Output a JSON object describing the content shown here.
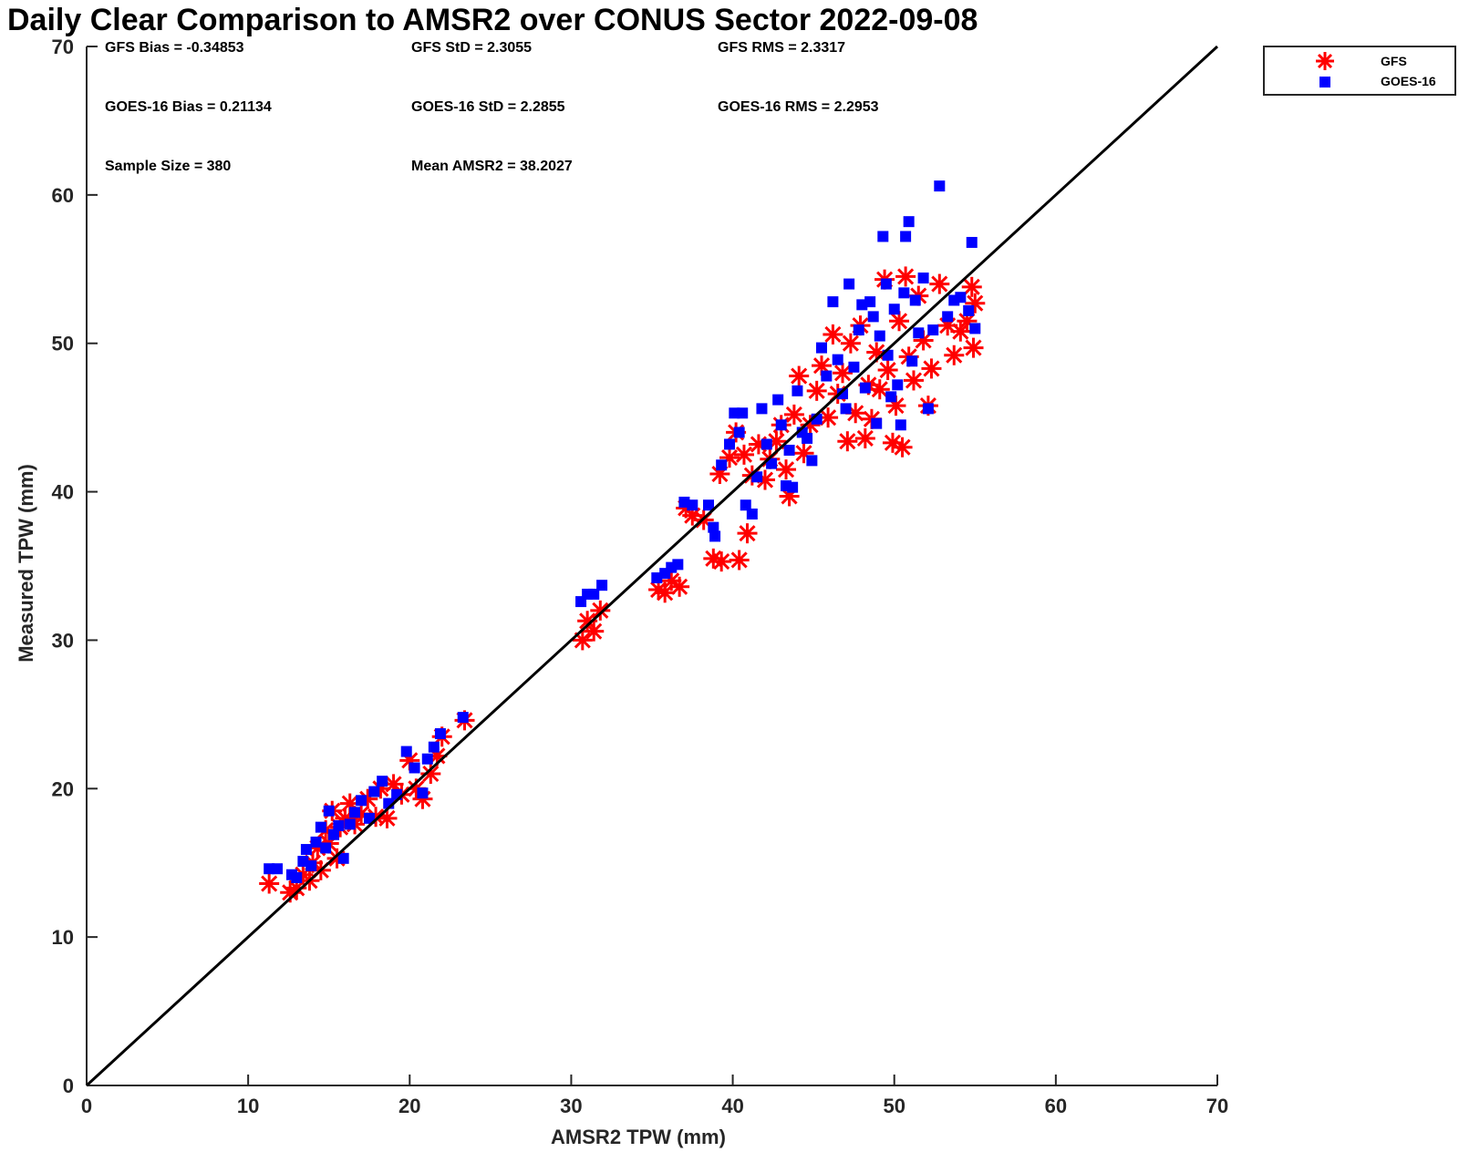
{
  "chart_data": {
    "type": "scatter",
    "title": "Daily Clear Comparison to AMSR2 over CONUS Sector 2022-09-08",
    "xlabel": "AMSR2 TPW (mm)",
    "ylabel": "Measured TPW (mm)",
    "xlim": [
      0,
      70
    ],
    "ylim": [
      0,
      70
    ],
    "xticks": [
      "0",
      "10",
      "20",
      "30",
      "40",
      "50",
      "60",
      "70"
    ],
    "yticks": [
      "0",
      "10",
      "20",
      "30",
      "40",
      "50",
      "60",
      "70"
    ],
    "grid": false,
    "legend_position": "outside top-right",
    "reference_line": "1:1",
    "stats": {
      "gfs_bias": "GFS Bias = -0.34853",
      "gfs_std": "GFS StD = 2.3055",
      "gfs_rms": "GFS RMS = 2.3317",
      "goes_bias": "GOES-16 Bias = 0.21134",
      "goes_std": "GOES-16 StD = 2.2855",
      "goes_rms": "GOES-16 RMS = 2.2953",
      "sample_size": "Sample Size = 380",
      "mean_amsr2": "Mean AMSR2 = 38.2027"
    },
    "series": [
      {
        "name": "GFS",
        "marker": "asterisk",
        "color": "#ff0000",
        "points": [
          [
            11.3,
            13.6
          ],
          [
            12.6,
            13.0
          ],
          [
            13.0,
            13.3
          ],
          [
            13.4,
            14.2
          ],
          [
            13.8,
            13.8
          ],
          [
            14.0,
            15.0
          ],
          [
            14.3,
            16.0
          ],
          [
            14.5,
            14.5
          ],
          [
            14.8,
            17.2
          ],
          [
            15.0,
            16.3
          ],
          [
            15.2,
            18.5
          ],
          [
            15.5,
            15.3
          ],
          [
            15.7,
            17.4
          ],
          [
            16.0,
            18.0
          ],
          [
            16.3,
            19.0
          ],
          [
            16.6,
            17.6
          ],
          [
            17.0,
            18.3
          ],
          [
            17.4,
            19.3
          ],
          [
            17.9,
            18.1
          ],
          [
            18.2,
            20.0
          ],
          [
            18.6,
            18.0
          ],
          [
            19.0,
            20.3
          ],
          [
            19.5,
            19.6
          ],
          [
            20.0,
            21.9
          ],
          [
            20.4,
            20.0
          ],
          [
            20.8,
            19.3
          ],
          [
            21.3,
            21.0
          ],
          [
            21.7,
            22.2
          ],
          [
            22.0,
            23.5
          ],
          [
            23.4,
            24.6
          ],
          [
            30.7,
            30.0
          ],
          [
            31.0,
            31.3
          ],
          [
            31.4,
            30.6
          ],
          [
            31.8,
            32.0
          ],
          [
            35.4,
            33.4
          ],
          [
            35.8,
            33.2
          ],
          [
            36.2,
            34.0
          ],
          [
            36.7,
            33.6
          ],
          [
            37.1,
            38.9
          ],
          [
            37.5,
            38.4
          ],
          [
            38.2,
            38.1
          ],
          [
            38.8,
            35.5
          ],
          [
            39.3,
            35.3
          ],
          [
            39.2,
            41.2
          ],
          [
            39.8,
            42.3
          ],
          [
            40.2,
            44.0
          ],
          [
            40.4,
            35.4
          ],
          [
            40.7,
            42.5
          ],
          [
            40.9,
            37.2
          ],
          [
            41.2,
            41.1
          ],
          [
            41.6,
            43.2
          ],
          [
            42.0,
            40.8
          ],
          [
            42.3,
            42.2
          ],
          [
            42.7,
            43.4
          ],
          [
            43.0,
            44.5
          ],
          [
            43.3,
            41.5
          ],
          [
            43.5,
            39.7
          ],
          [
            43.8,
            45.2
          ],
          [
            44.1,
            47.8
          ],
          [
            44.4,
            42.6
          ],
          [
            44.8,
            44.5
          ],
          [
            45.2,
            46.8
          ],
          [
            45.5,
            48.5
          ],
          [
            45.9,
            45.0
          ],
          [
            46.2,
            50.6
          ],
          [
            46.5,
            46.6
          ],
          [
            46.8,
            48.0
          ],
          [
            47.1,
            43.4
          ],
          [
            47.3,
            50.0
          ],
          [
            47.6,
            45.3
          ],
          [
            47.9,
            51.2
          ],
          [
            48.2,
            43.6
          ],
          [
            48.4,
            47.2
          ],
          [
            48.6,
            44.9
          ],
          [
            48.9,
            49.4
          ],
          [
            49.1,
            46.9
          ],
          [
            49.4,
            54.3
          ],
          [
            49.6,
            48.2
          ],
          [
            49.9,
            43.3
          ],
          [
            50.1,
            45.8
          ],
          [
            50.3,
            51.5
          ],
          [
            50.5,
            43.0
          ],
          [
            50.7,
            54.5
          ],
          [
            50.9,
            49.1
          ],
          [
            51.2,
            47.5
          ],
          [
            51.5,
            53.2
          ],
          [
            51.8,
            50.2
          ],
          [
            52.1,
            45.8
          ],
          [
            52.3,
            48.3
          ],
          [
            52.8,
            54.0
          ],
          [
            53.3,
            51.2
          ],
          [
            53.7,
            49.2
          ],
          [
            54.1,
            50.8
          ],
          [
            54.5,
            51.5
          ],
          [
            54.8,
            53.8
          ],
          [
            55.0,
            52.7
          ],
          [
            54.9,
            49.7
          ]
        ]
      },
      {
        "name": "GOES-16",
        "marker": "square",
        "color": "#0000ff",
        "points": [
          [
            11.3,
            14.6
          ],
          [
            11.8,
            14.6
          ],
          [
            12.7,
            14.2
          ],
          [
            13.0,
            14.0
          ],
          [
            13.4,
            15.1
          ],
          [
            13.6,
            15.9
          ],
          [
            13.9,
            14.8
          ],
          [
            14.2,
            16.4
          ],
          [
            14.5,
            17.4
          ],
          [
            14.8,
            16.0
          ],
          [
            15.0,
            18.5
          ],
          [
            15.3,
            16.9
          ],
          [
            15.6,
            17.5
          ],
          [
            15.9,
            15.3
          ],
          [
            16.3,
            17.6
          ],
          [
            16.6,
            18.4
          ],
          [
            17.0,
            19.2
          ],
          [
            17.5,
            18.0
          ],
          [
            17.8,
            19.8
          ],
          [
            18.3,
            20.5
          ],
          [
            18.7,
            19.0
          ],
          [
            19.2,
            19.6
          ],
          [
            19.8,
            22.5
          ],
          [
            20.3,
            21.4
          ],
          [
            20.8,
            19.7
          ],
          [
            21.1,
            22.0
          ],
          [
            21.5,
            22.8
          ],
          [
            21.9,
            23.7
          ],
          [
            23.3,
            24.8
          ],
          [
            30.6,
            32.6
          ],
          [
            31.0,
            33.1
          ],
          [
            31.4,
            33.1
          ],
          [
            31.9,
            33.7
          ],
          [
            35.3,
            34.2
          ],
          [
            35.8,
            34.5
          ],
          [
            36.2,
            34.9
          ],
          [
            36.6,
            35.1
          ],
          [
            37.0,
            39.3
          ],
          [
            37.5,
            39.1
          ],
          [
            38.5,
            39.1
          ],
          [
            38.8,
            37.6
          ],
          [
            38.9,
            37.0
          ],
          [
            39.3,
            41.8
          ],
          [
            39.8,
            43.2
          ],
          [
            40.1,
            45.3
          ],
          [
            40.4,
            44.0
          ],
          [
            40.6,
            45.3
          ],
          [
            40.8,
            39.1
          ],
          [
            41.2,
            38.5
          ],
          [
            41.5,
            41.0
          ],
          [
            41.8,
            45.6
          ],
          [
            42.1,
            43.2
          ],
          [
            42.4,
            41.9
          ],
          [
            42.8,
            46.2
          ],
          [
            43.0,
            44.5
          ],
          [
            43.3,
            40.4
          ],
          [
            43.5,
            42.8
          ],
          [
            43.7,
            40.3
          ],
          [
            44.0,
            46.8
          ],
          [
            44.3,
            44.0
          ],
          [
            44.6,
            43.6
          ],
          [
            44.9,
            42.1
          ],
          [
            45.2,
            44.9
          ],
          [
            45.5,
            49.7
          ],
          [
            45.8,
            47.8
          ],
          [
            46.2,
            52.8
          ],
          [
            46.5,
            48.9
          ],
          [
            46.8,
            46.6
          ],
          [
            47.0,
            45.6
          ],
          [
            47.2,
            54.0
          ],
          [
            47.5,
            48.4
          ],
          [
            47.8,
            50.9
          ],
          [
            48.0,
            52.6
          ],
          [
            48.2,
            47.0
          ],
          [
            48.5,
            52.8
          ],
          [
            48.7,
            51.8
          ],
          [
            48.9,
            44.6
          ],
          [
            49.1,
            50.5
          ],
          [
            49.3,
            57.2
          ],
          [
            49.5,
            54.0
          ],
          [
            49.6,
            49.2
          ],
          [
            49.8,
            46.4
          ],
          [
            50.0,
            52.3
          ],
          [
            50.2,
            47.2
          ],
          [
            50.4,
            44.5
          ],
          [
            50.6,
            53.4
          ],
          [
            50.7,
            57.2
          ],
          [
            50.9,
            58.2
          ],
          [
            51.1,
            48.8
          ],
          [
            51.3,
            52.9
          ],
          [
            51.5,
            50.7
          ],
          [
            51.8,
            54.4
          ],
          [
            52.1,
            45.6
          ],
          [
            52.4,
            50.9
          ],
          [
            52.8,
            60.6
          ],
          [
            53.3,
            51.8
          ],
          [
            53.7,
            52.9
          ],
          [
            54.1,
            53.1
          ],
          [
            54.6,
            52.2
          ],
          [
            54.8,
            56.8
          ],
          [
            55.0,
            51.0
          ]
        ]
      }
    ]
  }
}
